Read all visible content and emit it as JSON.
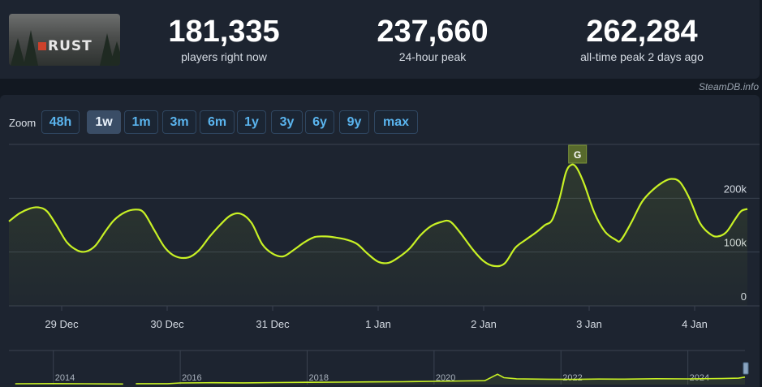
{
  "header": {
    "game_logo_text": "RUST",
    "stats": [
      {
        "value": "181,335",
        "label": "players right now"
      },
      {
        "value": "237,660",
        "label": "24-hour peak"
      },
      {
        "value": "262,284",
        "label": "all-time peak 2 days ago"
      }
    ],
    "credit": "SteamDB.info"
  },
  "zoom": {
    "label": "Zoom",
    "options": [
      "48h",
      "1w",
      "1m",
      "3m",
      "6m",
      "1y",
      "3y",
      "6y",
      "9y",
      "max"
    ],
    "active": "1w"
  },
  "colors": {
    "line": "#c8f125",
    "grid": "#3a4250",
    "tick": "#d5dbe3",
    "flag": "#57692c"
  },
  "chart_data": {
    "type": "line",
    "x_unit": "days since 28 Dec, 12:00",
    "xlim": [
      0,
      7
    ],
    "ylim": [
      0,
      300000
    ],
    "y_ticks": [
      {
        "value": 0,
        "label": "0"
      },
      {
        "value": 100000,
        "label": "100k"
      },
      {
        "value": 200000,
        "label": "200k"
      }
    ],
    "x_ticks": [
      {
        "x": 0.5,
        "label": "29 Dec"
      },
      {
        "x": 1.5,
        "label": "30 Dec"
      },
      {
        "x": 2.5,
        "label": "31 Dec"
      },
      {
        "x": 3.5,
        "label": "1 Jan"
      },
      {
        "x": 4.5,
        "label": "2 Jan"
      },
      {
        "x": 5.5,
        "label": "3 Jan"
      },
      {
        "x": 6.5,
        "label": "4 Jan"
      }
    ],
    "grid": true,
    "annotation": {
      "label": "G",
      "x": 5.39
    },
    "series": [
      {
        "name": "Players",
        "points": [
          [
            0.0,
            157000
          ],
          [
            0.1,
            172000
          ],
          [
            0.2,
            181000
          ],
          [
            0.28,
            183000
          ],
          [
            0.36,
            176000
          ],
          [
            0.45,
            150000
          ],
          [
            0.55,
            118000
          ],
          [
            0.65,
            103000
          ],
          [
            0.73,
            101000
          ],
          [
            0.82,
            112000
          ],
          [
            0.92,
            140000
          ],
          [
            1.0,
            160000
          ],
          [
            1.1,
            174000
          ],
          [
            1.2,
            179000
          ],
          [
            1.28,
            173000
          ],
          [
            1.38,
            140000
          ],
          [
            1.48,
            108000
          ],
          [
            1.58,
            92000
          ],
          [
            1.7,
            90000
          ],
          [
            1.8,
            103000
          ],
          [
            1.9,
            128000
          ],
          [
            2.0,
            150000
          ],
          [
            2.1,
            168000
          ],
          [
            2.2,
            171000
          ],
          [
            2.3,
            154000
          ],
          [
            2.4,
            115000
          ],
          [
            2.5,
            97000
          ],
          [
            2.6,
            92000
          ],
          [
            2.7,
            104000
          ],
          [
            2.8,
            118000
          ],
          [
            2.9,
            128000
          ],
          [
            3.0,
            129000
          ],
          [
            3.1,
            127000
          ],
          [
            3.2,
            123000
          ],
          [
            3.3,
            115000
          ],
          [
            3.4,
            97000
          ],
          [
            3.5,
            82000
          ],
          [
            3.6,
            80000
          ],
          [
            3.7,
            91000
          ],
          [
            3.8,
            107000
          ],
          [
            3.9,
            131000
          ],
          [
            4.0,
            148000
          ],
          [
            4.1,
            156000
          ],
          [
            4.18,
            157000
          ],
          [
            4.27,
            138000
          ],
          [
            4.4,
            104000
          ],
          [
            4.5,
            83000
          ],
          [
            4.6,
            74000
          ],
          [
            4.7,
            79000
          ],
          [
            4.8,
            108000
          ],
          [
            4.9,
            123000
          ],
          [
            5.0,
            137000
          ],
          [
            5.08,
            150000
          ],
          [
            5.15,
            160000
          ],
          [
            5.22,
            200000
          ],
          [
            5.28,
            248000
          ],
          [
            5.33,
            262000
          ],
          [
            5.38,
            257000
          ],
          [
            5.45,
            228000
          ],
          [
            5.55,
            173000
          ],
          [
            5.65,
            138000
          ],
          [
            5.75,
            123000
          ],
          [
            5.8,
            122000
          ],
          [
            5.9,
            155000
          ],
          [
            6.0,
            193000
          ],
          [
            6.1,
            215000
          ],
          [
            6.2,
            230000
          ],
          [
            6.28,
            236000
          ],
          [
            6.36,
            230000
          ],
          [
            6.45,
            200000
          ],
          [
            6.55,
            154000
          ],
          [
            6.65,
            133000
          ],
          [
            6.72,
            129000
          ],
          [
            6.8,
            137000
          ],
          [
            6.88,
            160000
          ],
          [
            6.94,
            176000
          ],
          [
            7.0,
            180000
          ]
        ]
      }
    ],
    "navigator": {
      "x_ticks": [
        "2014",
        "2016",
        "2018",
        "2020",
        "2022",
        "2024"
      ],
      "xlim": [
        2013.3,
        2024.9
      ],
      "ylim": [
        0,
        300000
      ],
      "points": [
        [
          2013.4,
          13000
        ],
        [
          2014.0,
          15000
        ],
        [
          2014.5,
          13000
        ],
        [
          2015.1,
          9000
        ],
        [
          2015.15,
          null
        ],
        [
          2015.3,
          14000
        ],
        [
          2015.8,
          14000
        ],
        [
          2016.0,
          26000
        ],
        [
          2016.5,
          30000
        ],
        [
          2017.0,
          27000
        ],
        [
          2017.5,
          33000
        ],
        [
          2018.0,
          36000
        ],
        [
          2018.5,
          39000
        ],
        [
          2019.0,
          43000
        ],
        [
          2019.5,
          45000
        ],
        [
          2020.0,
          52000
        ],
        [
          2020.5,
          58000
        ],
        [
          2020.8,
          62000
        ],
        [
          2021.0,
          165000
        ],
        [
          2021.1,
          110000
        ],
        [
          2021.3,
          92000
        ],
        [
          2021.8,
          86000
        ],
        [
          2022.2,
          83000
        ],
        [
          2022.6,
          88000
        ],
        [
          2023.0,
          87000
        ],
        [
          2023.5,
          93000
        ],
        [
          2024.0,
          91000
        ],
        [
          2024.5,
          96000
        ],
        [
          2024.8,
          102000
        ],
        [
          2024.9,
          120000
        ]
      ]
    }
  }
}
